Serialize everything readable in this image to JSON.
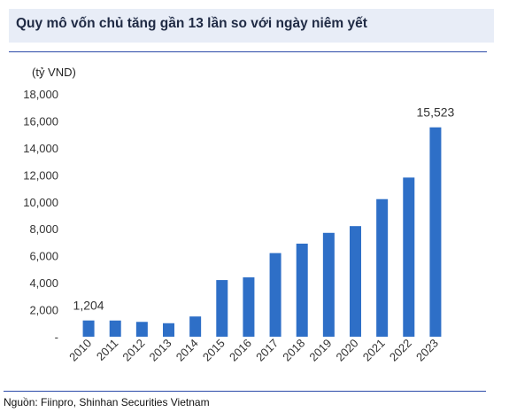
{
  "header": {
    "title": "Quy mô vốn chủ tăng gần 13 lần so với ngày niêm yết"
  },
  "footer": {
    "source": "Nguồn: Fiinpro, Shinhan Securities Vietnam"
  },
  "colors": {
    "bar": "#2e6fc7",
    "rule": "#2b4aa8",
    "title_band": "#e8edf7"
  },
  "chart_data": {
    "type": "bar",
    "title": "Quy mô vốn chủ tăng gần 13 lần so với ngày niêm yết",
    "unit_label": "(tỷ VND)",
    "categories": [
      "2010",
      "2011",
      "2012",
      "2013",
      "2014",
      "2015",
      "2016",
      "2017",
      "2018",
      "2019",
      "2020",
      "2021",
      "2022",
      "2023"
    ],
    "values": [
      1204,
      1200,
      1100,
      1000,
      1500,
      4200,
      4400,
      6200,
      6900,
      7700,
      8200,
      10200,
      11800,
      15523
    ],
    "ylim": [
      0,
      18000
    ],
    "yticks": [
      "-",
      "2,000",
      "4,000",
      "6,000",
      "8,000",
      "10,000",
      "12,000",
      "14,000",
      "16,000",
      "18,000"
    ],
    "ytick_values": [
      0,
      2000,
      4000,
      6000,
      8000,
      10000,
      12000,
      14000,
      16000,
      18000
    ],
    "data_labels": [
      {
        "index": 0,
        "text": "1,204"
      },
      {
        "index": 13,
        "text": "15,523"
      }
    ],
    "grid": false,
    "legend": "none"
  }
}
